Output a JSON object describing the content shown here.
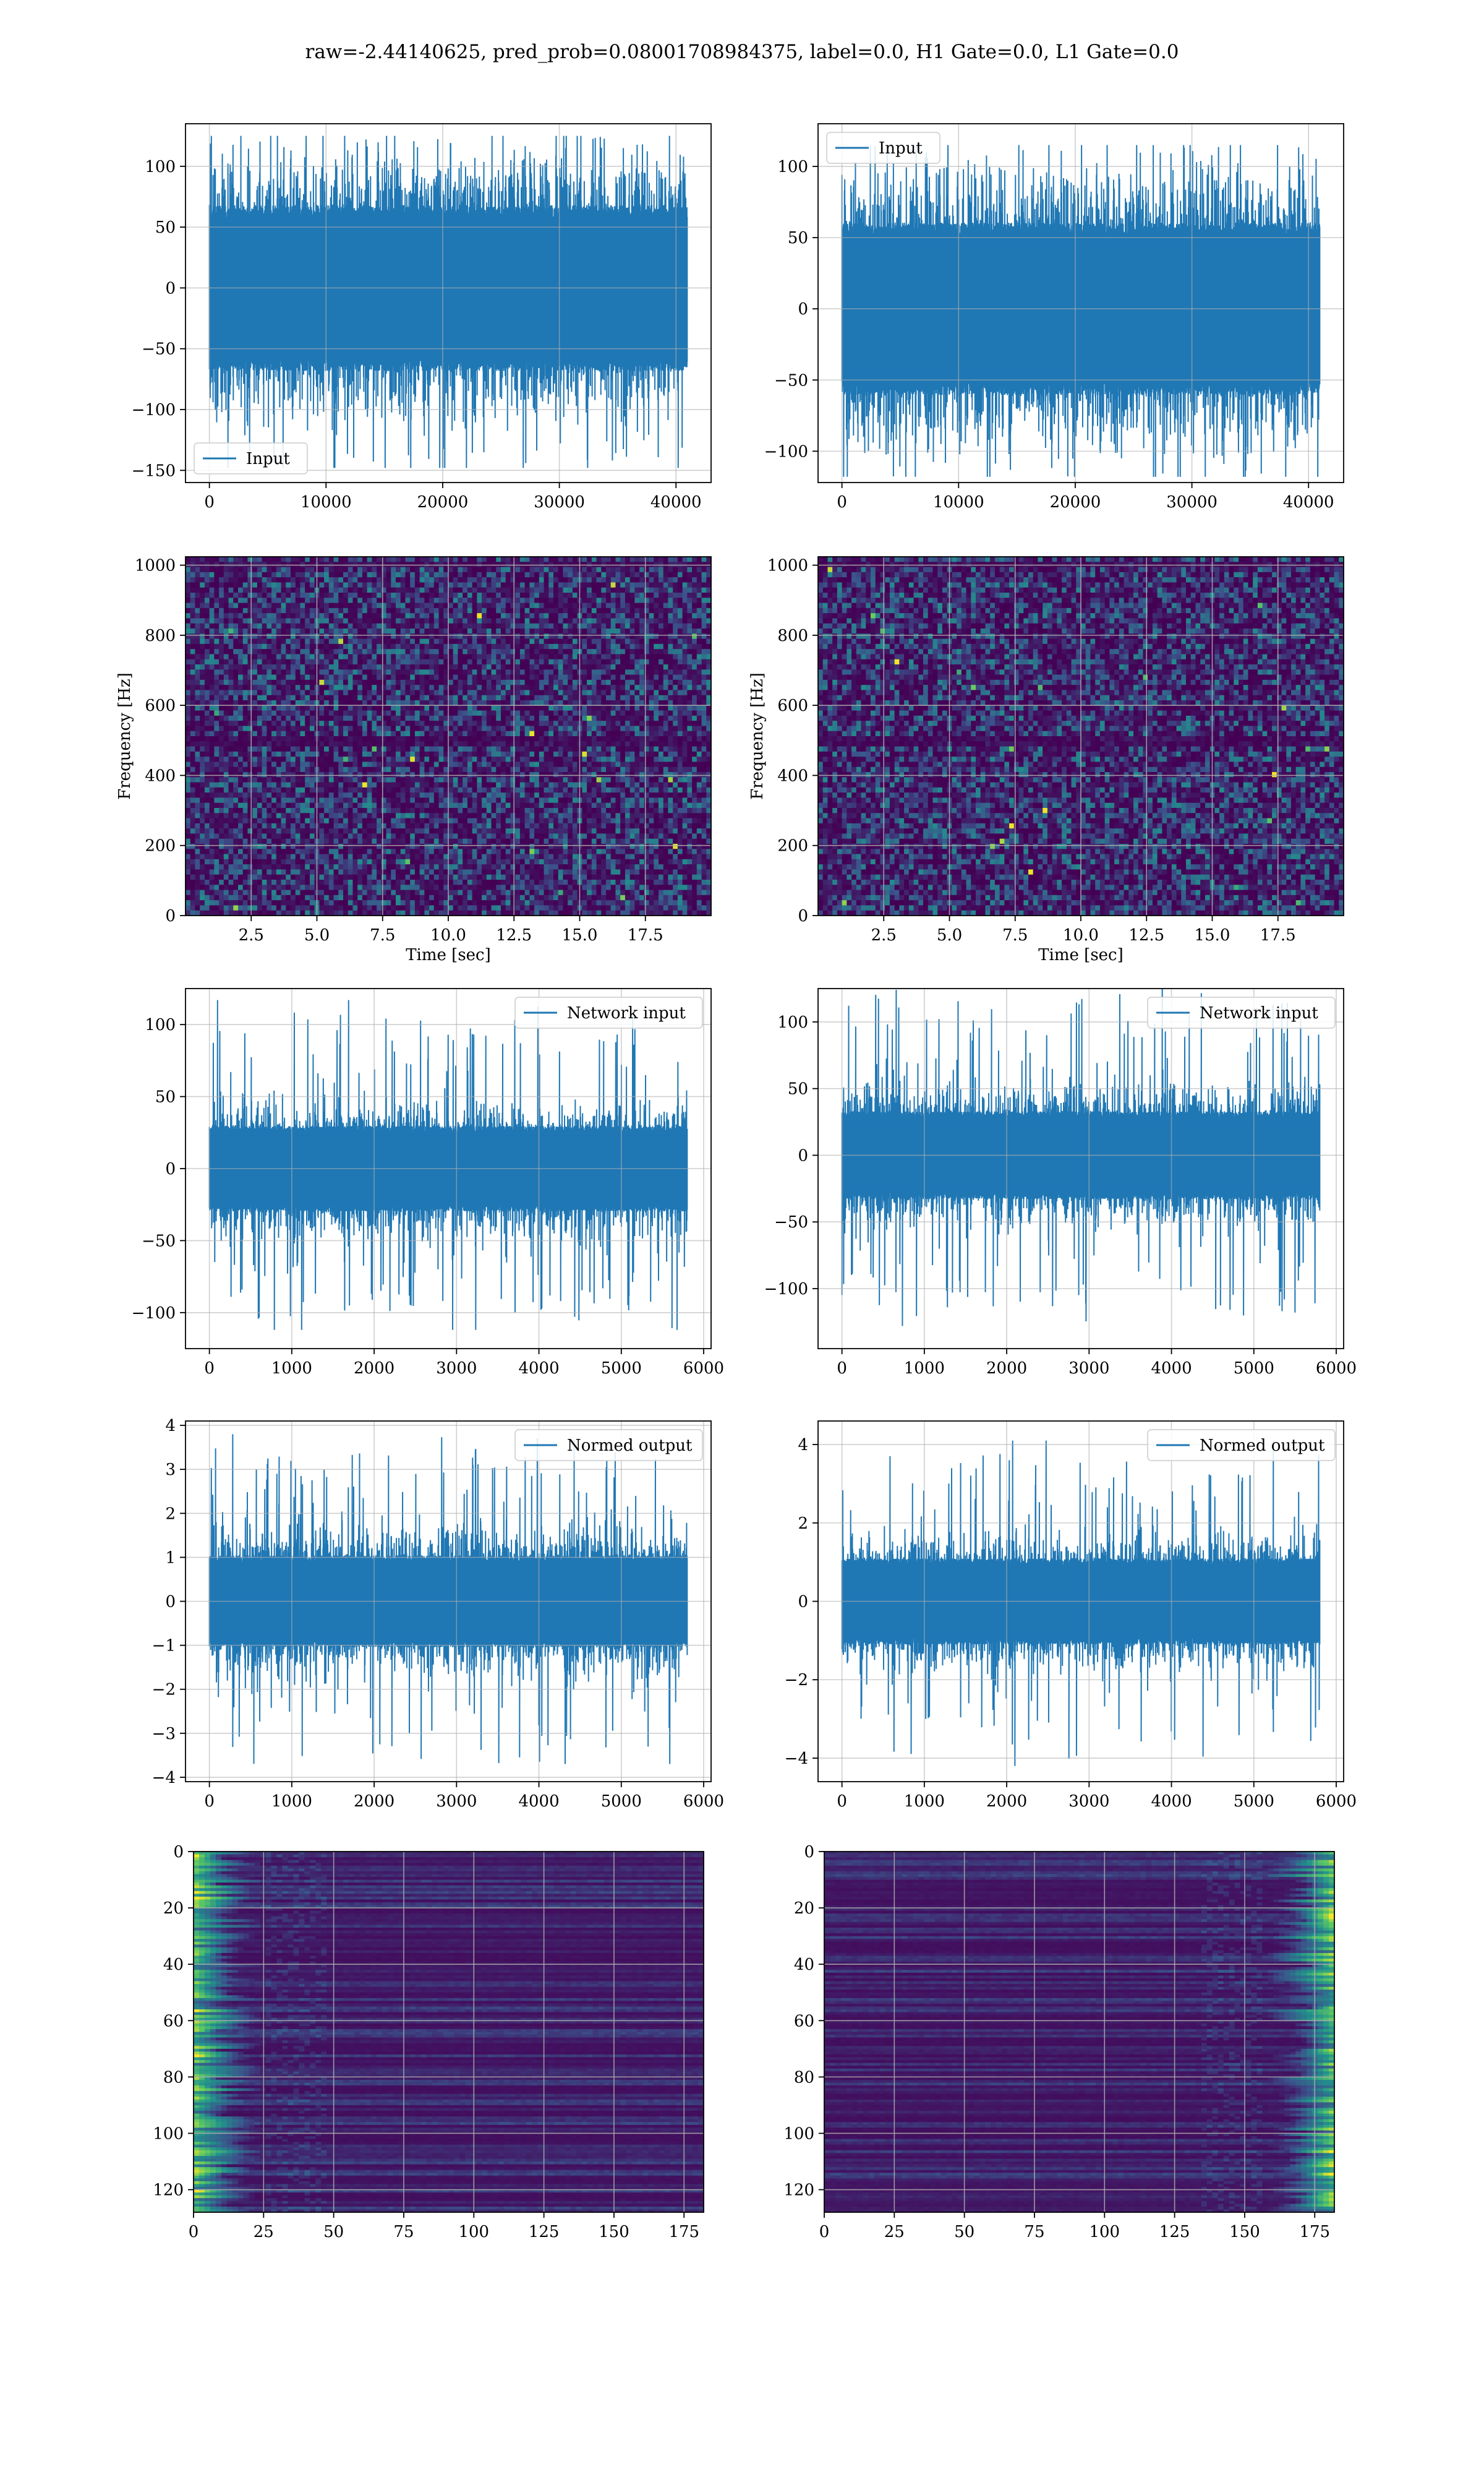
{
  "suptitle": "raw=-2.44140625, pred_prob=0.08001708984375, label=0.0, H1 Gate=0.0, L1 Gate=0.0",
  "colors": {
    "line": "#1f77b4",
    "axes": "#000000",
    "grid": "#b0b0b0",
    "heatmap_low": "#440154",
    "heatmap_mid": "#21918c",
    "heatmap_high": "#fde725"
  },
  "chart_data": [
    {
      "type": "line",
      "id": "input_left",
      "legend": "Input",
      "legend_loc": "lower-left",
      "xlim": [
        -2048,
        43008
      ],
      "ylim": [
        -160,
        135
      ],
      "xticks": [
        0,
        10000,
        20000,
        30000,
        40000
      ],
      "xticklabels": [
        "0",
        "10000",
        "20000",
        "30000",
        "40000"
      ],
      "yticks": [
        -150,
        -100,
        -50,
        0,
        50,
        100
      ],
      "yticklabels": [
        "−150",
        "−100",
        "−50",
        "0",
        "50",
        "100"
      ],
      "n_samples": 40960,
      "core_amplitude": 62,
      "spike_max": 125,
      "spike_min": -148,
      "grid": true
    },
    {
      "type": "line",
      "id": "input_right",
      "legend": "Input",
      "legend_loc": "upper-left",
      "xlim": [
        -2048,
        43008
      ],
      "ylim": [
        -122,
        130
      ],
      "xticks": [
        0,
        10000,
        20000,
        30000,
        40000
      ],
      "xticklabels": [
        "0",
        "10000",
        "20000",
        "30000",
        "40000"
      ],
      "yticks": [
        -100,
        -50,
        0,
        50,
        100
      ],
      "yticklabels": [
        "−100",
        "−50",
        "0",
        "50",
        "100"
      ],
      "n_samples": 40960,
      "core_amplitude": 55,
      "spike_max": 115,
      "spike_min": -118,
      "grid": true
    },
    {
      "type": "heatmap",
      "id": "spectrogram_left",
      "xlabel": "Time [sec]",
      "ylabel": "Frequency [Hz]",
      "xlim": [
        0,
        20
      ],
      "ylim": [
        0,
        1024
      ],
      "xticks": [
        2.5,
        5.0,
        7.5,
        10.0,
        12.5,
        15.0,
        17.5
      ],
      "xticklabels": [
        "2.5",
        "5.0",
        "7.5",
        "10.0",
        "12.5",
        "15.0",
        "17.5"
      ],
      "yticks": [
        0,
        200,
        400,
        600,
        800,
        1000
      ],
      "yticklabels": [
        "0",
        "200",
        "400",
        "600",
        "800",
        "1000"
      ],
      "grid": true
    },
    {
      "type": "heatmap",
      "id": "spectrogram_right",
      "xlabel": "Time [sec]",
      "ylabel": "Frequency [Hz]",
      "xlim": [
        0,
        20
      ],
      "ylim": [
        0,
        1024
      ],
      "xticks": [
        2.5,
        5.0,
        7.5,
        10.0,
        12.5,
        15.0,
        17.5
      ],
      "xticklabels": [
        "2.5",
        "5.0",
        "7.5",
        "10.0",
        "12.5",
        "15.0",
        "17.5"
      ],
      "yticks": [
        0,
        200,
        400,
        600,
        800,
        1000
      ],
      "yticklabels": [
        "0",
        "200",
        "400",
        "600",
        "800",
        "1000"
      ],
      "grid": true
    },
    {
      "type": "line",
      "id": "network_input_left",
      "legend": "Network input",
      "legend_loc": "upper-right",
      "xlim": [
        -290,
        6090
      ],
      "ylim": [
        -125,
        125
      ],
      "xticks": [
        0,
        1000,
        2000,
        3000,
        4000,
        5000,
        6000
      ],
      "xticklabels": [
        "0",
        "1000",
        "2000",
        "3000",
        "4000",
        "5000",
        "6000"
      ],
      "yticks": [
        -100,
        -50,
        0,
        50,
        100
      ],
      "yticklabels": [
        "−100",
        "−50",
        "0",
        "50",
        "100"
      ],
      "n_samples": 5800,
      "core_amplitude": 27,
      "spike_max": 117,
      "spike_min": -112,
      "grid": true
    },
    {
      "type": "line",
      "id": "network_input_right",
      "legend": "Network input",
      "legend_loc": "upper-right",
      "xlim": [
        -290,
        6090
      ],
      "ylim": [
        -145,
        125
      ],
      "xticks": [
        0,
        1000,
        2000,
        3000,
        4000,
        5000,
        6000
      ],
      "xticklabels": [
        "0",
        "1000",
        "2000",
        "3000",
        "4000",
        "5000",
        "6000"
      ],
      "yticks": [
        -100,
        -50,
        0,
        50,
        100
      ],
      "yticklabels": [
        "−100",
        "−50",
        "0",
        "50",
        "100"
      ],
      "n_samples": 5800,
      "core_amplitude": 30,
      "spike_max": 125,
      "spike_min": -128,
      "grid": true
    },
    {
      "type": "line",
      "id": "normed_output_left",
      "legend": "Normed output",
      "legend_loc": "upper-right",
      "xlim": [
        -290,
        6090
      ],
      "ylim": [
        -4.1,
        4.1
      ],
      "xticks": [
        0,
        1000,
        2000,
        3000,
        4000,
        5000,
        6000
      ],
      "xticklabels": [
        "0",
        "1000",
        "2000",
        "3000",
        "4000",
        "5000",
        "6000"
      ],
      "yticks": [
        -4,
        -3,
        -2,
        -1,
        0,
        1,
        2,
        3,
        4
      ],
      "yticklabels": [
        "−4",
        "−3",
        "−2",
        "−1",
        "0",
        "1",
        "2",
        "3",
        "4"
      ],
      "n_samples": 5800,
      "core_amplitude": 0.95,
      "spike_max": 3.8,
      "spike_min": -3.7,
      "grid": true
    },
    {
      "type": "line",
      "id": "normed_output_right",
      "legend": "Normed output",
      "legend_loc": "upper-right",
      "xlim": [
        -290,
        6090
      ],
      "ylim": [
        -4.6,
        4.6
      ],
      "xticks": [
        0,
        1000,
        2000,
        3000,
        4000,
        5000,
        6000
      ],
      "xticklabels": [
        "0",
        "1000",
        "2000",
        "3000",
        "4000",
        "5000",
        "6000"
      ],
      "yticks": [
        -4,
        -2,
        0,
        2,
        4
      ],
      "yticklabels": [
        "−4",
        "−2",
        "0",
        "2",
        "4"
      ],
      "n_samples": 5800,
      "core_amplitude": 1.0,
      "spike_max": 4.1,
      "spike_min": -4.2,
      "grid": true
    },
    {
      "type": "heatmap",
      "id": "feature_map_left",
      "xlim": [
        0,
        182
      ],
      "ylim": [
        128,
        0
      ],
      "y_inverted": true,
      "hot_side": "left",
      "xticks": [
        0,
        25,
        50,
        75,
        100,
        125,
        150,
        175
      ],
      "xticklabels": [
        "0",
        "25",
        "50",
        "75",
        "100",
        "125",
        "150",
        "175"
      ],
      "yticks": [
        0,
        20,
        40,
        60,
        80,
        100,
        120
      ],
      "yticklabels": [
        "0",
        "20",
        "40",
        "60",
        "80",
        "100",
        "120"
      ],
      "grid": true
    },
    {
      "type": "heatmap",
      "id": "feature_map_right",
      "xlim": [
        0,
        182
      ],
      "ylim": [
        128,
        0
      ],
      "y_inverted": true,
      "hot_side": "right",
      "xticks": [
        0,
        25,
        50,
        75,
        100,
        125,
        150,
        175
      ],
      "xticklabels": [
        "0",
        "25",
        "50",
        "75",
        "100",
        "125",
        "150",
        "175"
      ],
      "yticks": [
        0,
        20,
        40,
        60,
        80,
        100,
        120
      ],
      "yticklabels": [
        "0",
        "20",
        "40",
        "60",
        "80",
        "100",
        "120"
      ],
      "grid": true
    }
  ]
}
